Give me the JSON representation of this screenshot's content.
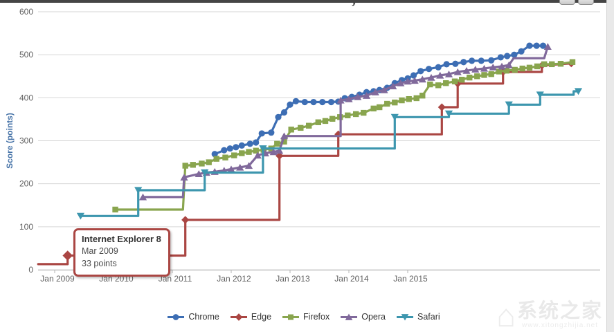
{
  "window": {
    "partial_title_glyph": "y",
    "top_bar_color": "#454545"
  },
  "toolbar": {
    "buttons": [
      {
        "name": "print-chart"
      },
      {
        "name": "export-chart"
      }
    ]
  },
  "tooltip": {
    "title": "Internet Explorer 8",
    "date": "Mar 2009",
    "value_text": "33 points",
    "border_color": "#aa4643",
    "series": "Edge",
    "x_year": 2009.22,
    "value": 33
  },
  "watermark": {
    "text": "系统之家",
    "url": "www.xitongzhijia.net",
    "logo": "house-icon"
  },
  "chart_data": {
    "type": "line",
    "title": "",
    "xlabel": "",
    "ylabel": "Score (points)",
    "ylabel_color": "#4572a7",
    "ylim": [
      0,
      600
    ],
    "ytick_step": 100,
    "y_ticks": [
      0,
      100,
      200,
      300,
      400,
      500,
      600
    ],
    "x_ticks": [
      {
        "label": "Jan 2009",
        "year": 2009
      },
      {
        "label": "Jan 2010",
        "year": 2010
      },
      {
        "label": "Jan 2011",
        "year": 2011
      },
      {
        "label": "Jan 2012",
        "year": 2012
      },
      {
        "label": "Jan 2013",
        "year": 2013
      },
      {
        "label": "Jan 2014",
        "year": 2014
      },
      {
        "label": "Jan 2015",
        "year": 2015
      }
    ],
    "x_range_years": [
      2008.72,
      2018.27
    ],
    "grid": true,
    "grid_color": "#d6d6d6",
    "axis_line_color": "#b6b6b6",
    "tick_label_color": "#606060",
    "legend_position": "bottom-center",
    "series": [
      {
        "name": "Chrome",
        "color": "#3d6eb4",
        "marker": "circle",
        "points": [
          [
            2011.72,
            269
          ],
          [
            2011.88,
            278
          ],
          [
            2011.98,
            282
          ],
          [
            2012.08,
            285
          ],
          [
            2012.18,
            289
          ],
          [
            2012.32,
            293
          ],
          [
            2012.42,
            296
          ],
          [
            2012.52,
            317
          ],
          [
            2012.68,
            319
          ],
          [
            2012.8,
            355
          ],
          [
            2012.9,
            366
          ],
          [
            2013.0,
            384
          ],
          [
            2013.1,
            392
          ],
          [
            2013.25,
            390
          ],
          [
            2013.4,
            390
          ],
          [
            2013.55,
            390
          ],
          [
            2013.7,
            390
          ],
          [
            2013.82,
            391
          ],
          [
            2013.93,
            399
          ],
          [
            2014.05,
            402
          ],
          [
            2014.18,
            407
          ],
          [
            2014.3,
            413
          ],
          [
            2014.42,
            415
          ],
          [
            2014.52,
            418
          ],
          [
            2014.65,
            423
          ],
          [
            2014.78,
            434
          ],
          [
            2014.9,
            441
          ],
          [
            2015.0,
            445
          ],
          [
            2015.1,
            452
          ],
          [
            2015.22,
            462
          ],
          [
            2015.36,
            467
          ],
          [
            2015.52,
            471
          ],
          [
            2015.66,
            478
          ],
          [
            2015.81,
            479
          ],
          [
            2015.95,
            483
          ],
          [
            2016.09,
            486
          ],
          [
            2016.25,
            486
          ],
          [
            2016.42,
            487
          ],
          [
            2016.58,
            494
          ],
          [
            2016.69,
            497
          ],
          [
            2016.81,
            500
          ],
          [
            2016.93,
            508
          ],
          [
            2017.07,
            521
          ],
          [
            2017.19,
            521
          ],
          [
            2017.3,
            521
          ]
        ]
      },
      {
        "name": "Edge",
        "color": "#aa4643",
        "marker": "diamond",
        "points": [
          [
            2008.72,
            13,
            0
          ],
          [
            2009.22,
            13,
            0
          ],
          [
            2009.22,
            33,
            1
          ],
          [
            2011.22,
            33,
            0
          ],
          [
            2011.22,
            116,
            1
          ],
          [
            2012.82,
            116,
            0
          ],
          [
            2012.82,
            265,
            1
          ],
          [
            2013.82,
            265,
            0
          ],
          [
            2013.82,
            315,
            1
          ],
          [
            2015.58,
            315,
            0
          ],
          [
            2015.58,
            378,
            1
          ],
          [
            2015.85,
            378,
            0
          ],
          [
            2015.85,
            433,
            1
          ],
          [
            2016.62,
            433,
            0
          ],
          [
            2016.62,
            460,
            1
          ],
          [
            2017.28,
            460,
            0
          ],
          [
            2017.28,
            475,
            1
          ],
          [
            2017.78,
            480,
            1
          ]
        ]
      },
      {
        "name": "Firefox",
        "color": "#89a54e",
        "marker": "square",
        "points": [
          [
            2010.03,
            140,
            1
          ],
          [
            2011.18,
            140,
            0
          ],
          [
            2011.22,
            242,
            1
          ],
          [
            2011.35,
            244,
            1
          ],
          [
            2011.5,
            247,
            1
          ],
          [
            2011.62,
            250,
            1
          ],
          [
            2011.75,
            258,
            1
          ],
          [
            2011.9,
            261,
            1
          ],
          [
            2012.05,
            266,
            1
          ],
          [
            2012.18,
            271,
            1
          ],
          [
            2012.3,
            274,
            1
          ],
          [
            2012.42,
            277,
            1
          ],
          [
            2012.55,
            279,
            1
          ],
          [
            2012.68,
            282,
            1
          ],
          [
            2012.78,
            293,
            1
          ],
          [
            2012.9,
            298,
            1
          ],
          [
            2013.02,
            326,
            1
          ],
          [
            2013.18,
            330,
            1
          ],
          [
            2013.32,
            335,
            1
          ],
          [
            2013.48,
            343,
            1
          ],
          [
            2013.6,
            346,
            1
          ],
          [
            2013.72,
            351,
            1
          ],
          [
            2013.85,
            355,
            1
          ],
          [
            2013.98,
            359,
            1
          ],
          [
            2014.12,
            362,
            1
          ],
          [
            2014.25,
            365,
            1
          ],
          [
            2014.42,
            375,
            1
          ],
          [
            2014.52,
            378,
            1
          ],
          [
            2014.65,
            386,
            1
          ],
          [
            2014.78,
            389,
            1
          ],
          [
            2014.9,
            394,
            1
          ],
          [
            2015.02,
            397,
            1
          ],
          [
            2015.15,
            399,
            1
          ],
          [
            2015.25,
            405,
            1
          ],
          [
            2015.38,
            431,
            1
          ],
          [
            2015.52,
            429,
            1
          ],
          [
            2015.65,
            434,
            1
          ],
          [
            2015.8,
            438,
            1
          ],
          [
            2015.92,
            442,
            1
          ],
          [
            2016.05,
            447,
            1
          ],
          [
            2016.18,
            450,
            1
          ],
          [
            2016.3,
            453,
            1
          ],
          [
            2016.42,
            455,
            1
          ],
          [
            2016.55,
            461,
            1
          ],
          [
            2016.68,
            463,
            1
          ],
          [
            2016.82,
            465,
            1
          ],
          [
            2016.95,
            468,
            1
          ],
          [
            2017.07,
            470,
            1
          ],
          [
            2017.2,
            473,
            1
          ],
          [
            2017.32,
            478,
            1
          ],
          [
            2017.45,
            478,
            1
          ],
          [
            2017.6,
            479,
            1
          ],
          [
            2017.8,
            483,
            1
          ]
        ]
      },
      {
        "name": "Opera",
        "color": "#80699b",
        "marker": "triangle-up",
        "points": [
          [
            2010.5,
            169,
            1
          ],
          [
            2011.18,
            169,
            0
          ],
          [
            2011.2,
            215,
            1
          ],
          [
            2011.45,
            223,
            1
          ],
          [
            2011.58,
            226,
            1
          ],
          [
            2011.72,
            228,
            1
          ],
          [
            2011.88,
            231,
            1
          ],
          [
            2012.0,
            234,
            1
          ],
          [
            2012.15,
            238,
            1
          ],
          [
            2012.3,
            242,
            1
          ],
          [
            2012.45,
            266,
            1
          ],
          [
            2012.58,
            271,
            1
          ],
          [
            2012.72,
            274,
            1
          ],
          [
            2012.82,
            277,
            1
          ],
          [
            2012.9,
            311,
            1
          ],
          [
            2013.86,
            311,
            0
          ],
          [
            2013.86,
            394,
            1
          ],
          [
            2014.0,
            397,
            1
          ],
          [
            2014.15,
            402,
            1
          ],
          [
            2014.3,
            405,
            1
          ],
          [
            2014.45,
            413,
            1
          ],
          [
            2014.6,
            418,
            1
          ],
          [
            2014.75,
            427,
            1
          ],
          [
            2014.88,
            434,
            1
          ],
          [
            2015.0,
            438,
            1
          ],
          [
            2015.12,
            440,
            1
          ],
          [
            2015.25,
            443,
            1
          ],
          [
            2015.4,
            447,
            1
          ],
          [
            2015.55,
            452,
            1
          ],
          [
            2015.7,
            455,
            1
          ],
          [
            2015.85,
            460,
            1
          ],
          [
            2016.0,
            463,
            1
          ],
          [
            2016.15,
            466,
            1
          ],
          [
            2016.3,
            468,
            1
          ],
          [
            2016.45,
            471,
            1
          ],
          [
            2016.6,
            473,
            1
          ],
          [
            2016.72,
            476,
            1
          ],
          [
            2016.8,
            492,
            0
          ],
          [
            2017.32,
            492,
            0
          ],
          [
            2017.38,
            519,
            1
          ]
        ]
      },
      {
        "name": "Safari",
        "color": "#3d96ae",
        "marker": "triangle-down",
        "points": [
          [
            2009.44,
            125,
            1
          ],
          [
            2010.42,
            125,
            0
          ],
          [
            2010.42,
            185,
            1
          ],
          [
            2011.55,
            185,
            0
          ],
          [
            2011.55,
            226,
            1
          ],
          [
            2012.54,
            226,
            0
          ],
          [
            2012.54,
            282,
            1
          ],
          [
            2014.78,
            282,
            0
          ],
          [
            2014.78,
            355,
            1
          ],
          [
            2015.7,
            355,
            0
          ],
          [
            2015.7,
            363,
            1
          ],
          [
            2016.72,
            363,
            0
          ],
          [
            2016.72,
            384,
            1
          ],
          [
            2017.25,
            384,
            0
          ],
          [
            2017.25,
            407,
            1
          ],
          [
            2017.82,
            407,
            0
          ],
          [
            2017.82,
            415,
            0
          ],
          [
            2017.9,
            415,
            1
          ]
        ]
      }
    ]
  }
}
